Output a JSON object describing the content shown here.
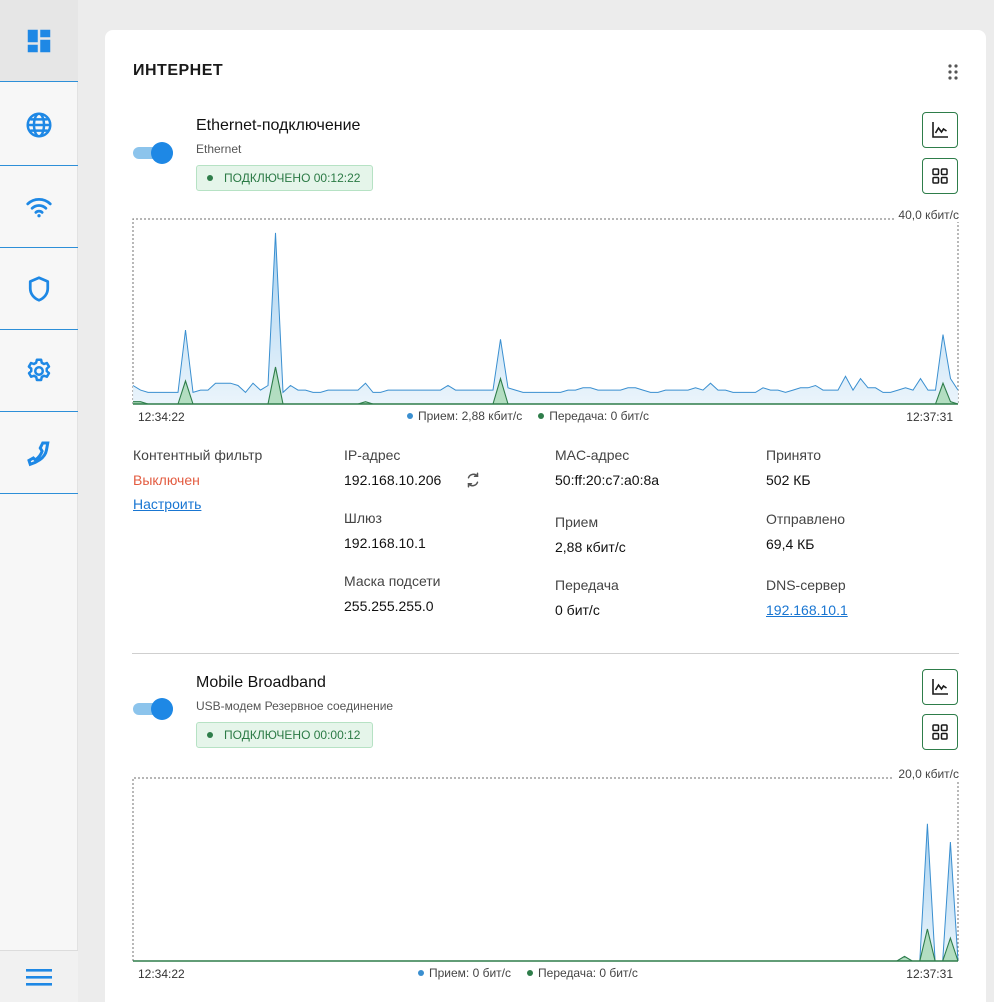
{
  "sidebar": {
    "items": [
      {
        "icon": "dashboard-icon",
        "active": true
      },
      {
        "icon": "globe-icon"
      },
      {
        "icon": "wifi-icon"
      },
      {
        "icon": "shield-icon"
      },
      {
        "icon": "gear-icon"
      },
      {
        "icon": "phone-icon"
      }
    ],
    "menu_icon": "menu-icon",
    "accent_color": "#1e88e5"
  },
  "card": {
    "title": "ИНТЕРНЕТ"
  },
  "connections": [
    {
      "name": "Ethernet-подключение",
      "subtitle": "Ethernet",
      "status": "ПОДКЛЮЧЕНО 00:12:22",
      "enabled": true,
      "chart_max_label": "40,0 кбит/с",
      "time_start": "12:34:22",
      "time_end": "12:37:31",
      "legend_rx": "Прием: 2,88 кбит/с",
      "legend_tx": "Передача: 0 бит/с",
      "info": {
        "content_filter_label": "Контентный фильтр",
        "content_filter_value": "Выключен",
        "content_filter_link": "Настроить",
        "ip_label": "IP-адрес",
        "ip_value": "192.168.10.206",
        "gateway_label": "Шлюз",
        "gateway_value": "192.168.10.1",
        "mask_label": "Маска подсети",
        "mask_value": "255.255.255.0",
        "mac_label": "MAC-адрес",
        "mac_value": "50:ff:20:c7:a0:8a",
        "rx_label": "Прием",
        "rx_value": "2,88 кбит/с",
        "tx_label": "Передача",
        "tx_value": "0 бит/с",
        "received_label": "Принято",
        "received_value": "502 КБ",
        "sent_label": "Отправлено",
        "sent_value": "69,4 КБ",
        "dns_label": "DNS-сервер",
        "dns_value": "192.168.10.1"
      }
    },
    {
      "name": "Mobile Broadband",
      "subtitle": "USB-модем Резервное соединение",
      "status": "ПОДКЛЮЧЕНО 00:00:12",
      "enabled": true,
      "chart_max_label": "20,0 кбит/с",
      "time_start": "12:34:22",
      "time_end": "12:37:31",
      "legend_rx": "Прием: 0 бит/с",
      "legend_tx": "Передача: 0 бит/с"
    }
  ],
  "chart_data": [
    {
      "type": "area",
      "ylim": [
        0,
        40
      ],
      "x_range": [
        "12:34:22",
        "12:37:31"
      ],
      "series": [
        {
          "name": "Прием",
          "color": "#3a8fd0",
          "values": [
            4,
            3,
            2.5,
            2.5,
            2.5,
            2.5,
            2.5,
            16,
            2.5,
            3,
            3,
            4.5,
            4.5,
            4.5,
            4,
            2.5,
            4.5,
            3,
            4,
            37,
            2.5,
            4,
            3,
            3,
            2.5,
            2.5,
            3,
            3,
            3,
            3,
            3,
            4.5,
            2.5,
            2.5,
            3,
            3,
            3,
            3,
            3,
            3,
            3,
            3,
            4,
            3,
            3,
            3,
            3,
            3,
            3,
            14,
            3.5,
            3,
            2.5,
            2.5,
            2.5,
            2.5,
            2.5,
            2.5,
            3,
            3,
            3.5,
            3.5,
            3,
            3,
            3,
            3,
            3.5,
            3.5,
            3,
            2.5,
            2.5,
            3,
            3,
            3,
            3,
            3.5,
            3,
            4.5,
            3,
            3,
            2.5,
            2.5,
            2.5,
            2.5,
            3.5,
            3,
            3,
            2.5,
            3,
            3.5,
            3.5,
            4,
            3,
            3,
            3,
            6,
            3,
            5.5,
            3.5,
            3.5,
            2.5,
            2.5,
            3,
            3.5,
            3,
            5.5,
            3,
            3,
            15,
            5.5,
            3
          ]
        },
        {
          "name": "Передача",
          "color": "#2e7d4a",
          "values": [
            0.5,
            0.5,
            0,
            0,
            0,
            0,
            0,
            5,
            0,
            0,
            0,
            0,
            0,
            0,
            0,
            0,
            0,
            0,
            0,
            8,
            0,
            0,
            0,
            0,
            0,
            0,
            0,
            0,
            0,
            0,
            0,
            0.5,
            0,
            0,
            0,
            0,
            0,
            0,
            0,
            0,
            0,
            0,
            0,
            0,
            0,
            0,
            0,
            0,
            0,
            5.5,
            0,
            0,
            0,
            0,
            0,
            0,
            0,
            0,
            0,
            0,
            0,
            0,
            0,
            0,
            0,
            0,
            0,
            0,
            0,
            0,
            0,
            0,
            0,
            0,
            0,
            0,
            0,
            0,
            0,
            0,
            0,
            0,
            0,
            0,
            0,
            0,
            0,
            0,
            0,
            0,
            0,
            0,
            0,
            0,
            0,
            0,
            0,
            0,
            0,
            0,
            0,
            0,
            0,
            0,
            0,
            0,
            0,
            0,
            4.5,
            0.5,
            0
          ]
        }
      ]
    },
    {
      "type": "area",
      "ylim": [
        0,
        20
      ],
      "x_range": [
        "12:34:22",
        "12:37:31"
      ],
      "series": [
        {
          "name": "Прием",
          "color": "#3a8fd0",
          "values": [
            0,
            0,
            0,
            0,
            0,
            0,
            0,
            0,
            0,
            0,
            0,
            0,
            0,
            0,
            0,
            0,
            0,
            0,
            0,
            0,
            0,
            0,
            0,
            0,
            0,
            0,
            0,
            0,
            0,
            0,
            0,
            0,
            0,
            0,
            0,
            0,
            0,
            0,
            0,
            0,
            0,
            0,
            0,
            0,
            0,
            0,
            0,
            0,
            0,
            0,
            0,
            0,
            0,
            0,
            0,
            0,
            0,
            0,
            0,
            0,
            0,
            0,
            0,
            0,
            0,
            0,
            0,
            0,
            0,
            0,
            0,
            0,
            0,
            0,
            0,
            0,
            0,
            0,
            0,
            0,
            0,
            0,
            0,
            0,
            0,
            0,
            0,
            0,
            0,
            0,
            0,
            0,
            0,
            0,
            0,
            0,
            0,
            0,
            0,
            0,
            0,
            0.5,
            0,
            0,
            15,
            0,
            0,
            13,
            0
          ]
        },
        {
          "name": "Передача",
          "color": "#2e7d4a",
          "values": [
            0,
            0,
            0,
            0,
            0,
            0,
            0,
            0,
            0,
            0,
            0,
            0,
            0,
            0,
            0,
            0,
            0,
            0,
            0,
            0,
            0,
            0,
            0,
            0,
            0,
            0,
            0,
            0,
            0,
            0,
            0,
            0,
            0,
            0,
            0,
            0,
            0,
            0,
            0,
            0,
            0,
            0,
            0,
            0,
            0,
            0,
            0,
            0,
            0,
            0,
            0,
            0,
            0,
            0,
            0,
            0,
            0,
            0,
            0,
            0,
            0,
            0,
            0,
            0,
            0,
            0,
            0,
            0,
            0,
            0,
            0,
            0,
            0,
            0,
            0,
            0,
            0,
            0,
            0,
            0,
            0,
            0,
            0,
            0,
            0,
            0,
            0,
            0,
            0,
            0,
            0,
            0,
            0,
            0,
            0,
            0,
            0,
            0,
            0,
            0,
            0,
            0.5,
            0,
            0,
            3.5,
            0,
            0,
            2.5,
            0
          ]
        }
      ]
    }
  ]
}
